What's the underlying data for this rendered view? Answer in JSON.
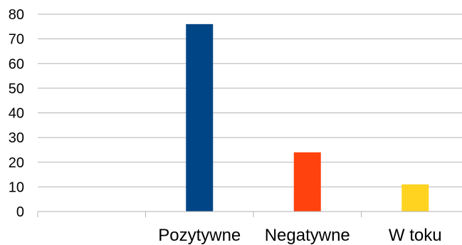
{
  "chart_data": {
    "type": "bar",
    "title": "",
    "xlabel": "",
    "ylabel": "",
    "ylim": [
      0,
      80
    ],
    "yticks": [
      0,
      10,
      20,
      30,
      40,
      50,
      60,
      70,
      80
    ],
    "ytick_labels": [
      "0",
      "10",
      "20",
      "30",
      "40",
      "50",
      "60",
      "70",
      "80"
    ],
    "grid": true,
    "legend": "none",
    "categories": [
      "Pozytywne",
      "Negatywne",
      "W toku"
    ],
    "series": [
      {
        "values": [
          [
            76,
            0,
            0
          ],
          [
            0,
            24,
            0
          ],
          [
            0,
            0,
            11
          ]
        ]
      }
    ],
    "values": [
      76,
      24,
      11
    ],
    "colors": [
      "#004586",
      "#ff420e",
      "#ffd320"
    ]
  }
}
